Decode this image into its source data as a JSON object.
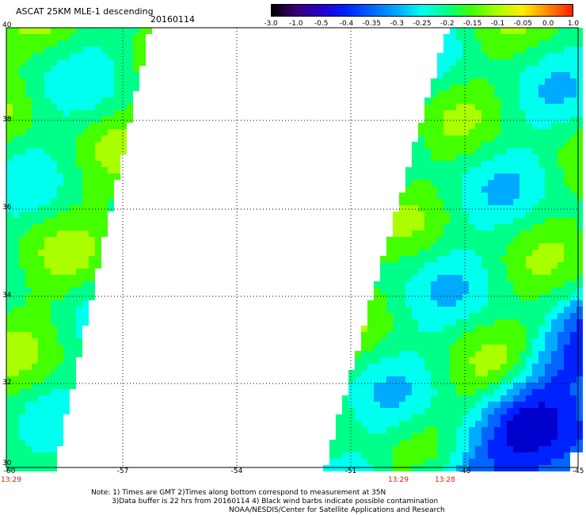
{
  "title": "ASCAT 25KM MLE-1 descending",
  "date": "20160114",
  "colorbar": {
    "labels": [
      "-3.0",
      "-1.0",
      "-0.5",
      "-0.4",
      "-0.35",
      "-0.3",
      "-0.25",
      "-0.2",
      "-0.15",
      "-0.1",
      "-0.05",
      "0.0",
      "1.0"
    ],
    "colors": [
      "#000000",
      "#3a0078",
      "#2200cc",
      "#0022ff",
      "#0066ff",
      "#00aaff",
      "#00ffee",
      "#00ff88",
      "#44ff00",
      "#aaff00",
      "#ffee00",
      "#ff8800",
      "#ff2200"
    ]
  },
  "map": {
    "lat_labels": [
      "40",
      "38",
      "36",
      "34",
      "32",
      "30"
    ],
    "lon_labels": [
      "-60",
      "-57",
      "-54",
      "-51",
      "-48",
      "-45"
    ],
    "lat_range": [
      30,
      40
    ],
    "lon_range": [
      -60,
      -45
    ],
    "times": [
      {
        "label": "13:29",
        "lon": -60
      },
      {
        "label": "13:29",
        "lon": -49.2
      },
      {
        "label": "13:28",
        "lon": -48.0
      }
    ]
  },
  "notes": [
    "Note: 1) Times are GMT 2)Times along bottom correspond to measurement at 35N",
    "3)Data buffer is 22 hrs from 20160114 4) Black wind barbs indicate possible contamination",
    "NOAA/NESDIS/Center for Satellite Applications and Research"
  ]
}
